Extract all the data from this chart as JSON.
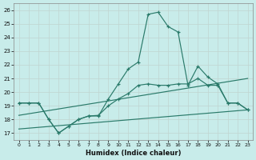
{
  "xlabel": "Humidex (Indice chaleur)",
  "x_values": [
    0,
    1,
    2,
    3,
    4,
    5,
    6,
    7,
    8,
    9,
    10,
    11,
    12,
    13,
    14,
    15,
    16,
    17,
    18,
    19,
    20,
    21,
    22,
    23
  ],
  "line_main": [
    19.2,
    19.2,
    19.2,
    18.0,
    17.0,
    17.5,
    18.0,
    18.25,
    18.25,
    19.5,
    20.6,
    21.7,
    22.2,
    25.7,
    25.85,
    24.8,
    24.4,
    20.5,
    21.9,
    21.1,
    20.6,
    19.2,
    19.2,
    18.7
  ],
  "line_mid": [
    19.2,
    19.2,
    19.2,
    18.0,
    17.0,
    17.5,
    18.0,
    18.25,
    18.3,
    19.0,
    19.5,
    19.9,
    20.5,
    20.6,
    20.5,
    20.5,
    20.6,
    20.6,
    21.0,
    20.5,
    20.5,
    19.2,
    19.2,
    18.7
  ],
  "trend1_x": [
    0,
    23
  ],
  "trend1_y": [
    18.3,
    21.0
  ],
  "trend2_x": [
    0,
    23
  ],
  "trend2_y": [
    17.3,
    18.7
  ],
  "bg_color": "#c8ecea",
  "grid_color": "#c0d4d0",
  "line_color": "#2a7a6a",
  "ylim": [
    16.5,
    26.5
  ],
  "xlim": [
    -0.5,
    23.5
  ],
  "yticks": [
    17,
    18,
    19,
    20,
    21,
    22,
    23,
    24,
    25,
    26
  ],
  "xticks": [
    0,
    1,
    2,
    3,
    4,
    5,
    6,
    7,
    8,
    9,
    10,
    11,
    12,
    13,
    14,
    15,
    16,
    17,
    18,
    19,
    20,
    21,
    22,
    23
  ]
}
